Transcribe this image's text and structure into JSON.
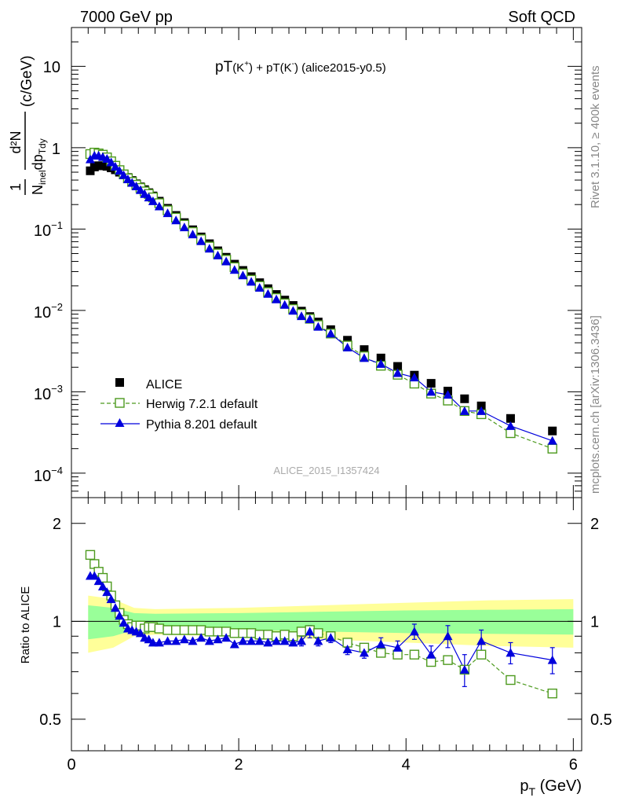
{
  "header": {
    "left": "7000 GeV pp",
    "right": "Soft QCD"
  },
  "plot_title": {
    "pre": "pT",
    "k1": "(K",
    "k1_sup": "+",
    "k1_close": ")",
    "plus": " + pT(K",
    "k2_sup": "-",
    "k2_close": ")",
    "post": " (alice2015-y0.5)"
  },
  "side_text": {
    "rivet": "Rivet 3.1.10, ≥ 400k events",
    "mcplots": "mcplots.cern.ch [arXiv:1306.3436]"
  },
  "watermark": "ALICE_2015_I1357424",
  "top_ylabel": {
    "one": "1",
    "num": "d²N",
    "den_n": "N",
    "den_sub": "inel",
    "den_dp": "dp",
    "den_sub2": "Tdy",
    "unit": "(c/GeV)"
  },
  "bottom_ylabel": "Ratio to ALICE",
  "xlabel": {
    "p": "p",
    "sub": "T",
    "unit": " (GeV)"
  },
  "legend": [
    {
      "label": "ALICE",
      "color": "#000000",
      "marker": "square-filled"
    },
    {
      "label": "Herwig 7.2.1 default",
      "color": "#4d9a1e",
      "marker": "square-open"
    },
    {
      "label": "Pythia 8.201 default",
      "color": "#0000dd",
      "marker": "triangle-filled"
    }
  ],
  "chart_data": {
    "type": "scatter",
    "x": [
      0.225,
      0.275,
      0.325,
      0.375,
      0.425,
      0.475,
      0.525,
      0.575,
      0.625,
      0.675,
      0.725,
      0.775,
      0.825,
      0.875,
      0.925,
      0.975,
      1.05,
      1.15,
      1.25,
      1.35,
      1.45,
      1.55,
      1.65,
      1.75,
      1.85,
      1.95,
      2.05,
      2.15,
      2.25,
      2.35,
      2.45,
      2.55,
      2.65,
      2.75,
      2.85,
      2.95,
      3.1,
      3.3,
      3.5,
      3.7,
      3.9,
      4.1,
      4.3,
      4.5,
      4.7,
      4.9,
      5.25,
      5.75
    ],
    "series": [
      {
        "name": "ALICE",
        "values": [
          0.52,
          0.58,
          0.6,
          0.6,
          0.59,
          0.565,
          0.535,
          0.5,
          0.465,
          0.43,
          0.395,
          0.36,
          0.33,
          0.305,
          0.28,
          0.255,
          0.22,
          0.18,
          0.147,
          0.12,
          0.098,
          0.08,
          0.066,
          0.054,
          0.045,
          0.037,
          0.031,
          0.026,
          0.0219,
          0.0185,
          0.0157,
          0.0134,
          0.0115,
          0.0098,
          0.0084,
          0.0072,
          0.0058,
          0.0043,
          0.0033,
          0.0026,
          0.00205,
          0.0016,
          0.00127,
          0.00102,
          0.00082,
          0.00067,
          0.00047,
          0.00033
        ]
      },
      {
        "name": "Herwig 7.2.1 default",
        "values": [
          0.835,
          0.87,
          0.85,
          0.82,
          0.76,
          0.68,
          0.6,
          0.53,
          0.47,
          0.42,
          0.38,
          0.35,
          0.32,
          0.29,
          0.27,
          0.245,
          0.208,
          0.17,
          0.138,
          0.113,
          0.092,
          0.075,
          0.061,
          0.05,
          0.042,
          0.034,
          0.0285,
          0.0238,
          0.02,
          0.0168,
          0.0142,
          0.0122,
          0.0104,
          0.0091,
          0.0079,
          0.0066,
          0.0052,
          0.0037,
          0.00273,
          0.00209,
          0.00162,
          0.00126,
          0.00095,
          0.00078,
          0.00058,
          0.00053,
          0.00031,
          0.0002
        ]
      },
      {
        "name": "Pythia 8.201 default",
        "values": [
          0.72,
          0.8,
          0.8,
          0.77,
          0.73,
          0.66,
          0.585,
          0.52,
          0.46,
          0.41,
          0.37,
          0.335,
          0.302,
          0.27,
          0.245,
          0.22,
          0.19,
          0.157,
          0.128,
          0.105,
          0.086,
          0.071,
          0.0575,
          0.0475,
          0.04,
          0.0315,
          0.027,
          0.0225,
          0.019,
          0.016,
          0.0137,
          0.0117,
          0.0099,
          0.0085,
          0.0078,
          0.0063,
          0.0052,
          0.0035,
          0.0026,
          0.0022,
          0.0017,
          0.0015,
          0.001,
          0.00092,
          0.00058,
          0.00058,
          0.00038,
          0.00025
        ]
      }
    ],
    "ratio": {
      "herwig": [
        1.6,
        1.5,
        1.42,
        1.36,
        1.28,
        1.2,
        1.12,
        1.06,
        1.01,
        0.98,
        0.96,
        0.97,
        0.97,
        0.95,
        0.96,
        0.96,
        0.95,
        0.94,
        0.94,
        0.94,
        0.94,
        0.94,
        0.93,
        0.93,
        0.93,
        0.92,
        0.92,
        0.92,
        0.91,
        0.91,
        0.9,
        0.91,
        0.9,
        0.93,
        0.94,
        0.92,
        0.9,
        0.86,
        0.83,
        0.8,
        0.79,
        0.79,
        0.75,
        0.76,
        0.71,
        0.79,
        0.66,
        0.6
      ],
      "pythia": [
        1.38,
        1.38,
        1.33,
        1.28,
        1.23,
        1.17,
        1.1,
        1.04,
        0.99,
        0.95,
        0.94,
        0.93,
        0.92,
        0.89,
        0.88,
        0.86,
        0.86,
        0.87,
        0.87,
        0.88,
        0.87,
        0.89,
        0.87,
        0.88,
        0.89,
        0.85,
        0.87,
        0.87,
        0.87,
        0.86,
        0.87,
        0.87,
        0.86,
        0.87,
        0.93,
        0.87,
        0.89,
        0.82,
        0.8,
        0.85,
        0.83,
        0.93,
        0.79,
        0.9,
        0.71,
        0.87,
        0.8,
        0.76
      ],
      "pythia_err": [
        0,
        0,
        0,
        0,
        0,
        0,
        0,
        0,
        0,
        0,
        0,
        0,
        0,
        0,
        0,
        0,
        0,
        0,
        0,
        0,
        0,
        0,
        0,
        0,
        0,
        0,
        0,
        0,
        0,
        0,
        0,
        0,
        0,
        0.03,
        0.04,
        0.03,
        0.03,
        0.03,
        0.03,
        0.04,
        0.04,
        0.05,
        0.05,
        0.07,
        0.08,
        0.07,
        0.06,
        0.07
      ],
      "band_inner": [
        [
          0.2,
          0.12
        ],
        [
          0.5,
          0.1
        ],
        [
          0.75,
          0.06
        ],
        [
          1.0,
          0.055
        ],
        [
          2.0,
          0.06
        ],
        [
          3.0,
          0.07
        ],
        [
          4.0,
          0.08
        ],
        [
          5.0,
          0.085
        ],
        [
          6.0,
          0.09
        ]
      ],
      "band_outer": [
        [
          0.2,
          0.2
        ],
        [
          0.5,
          0.17
        ],
        [
          0.75,
          0.1
        ],
        [
          1.0,
          0.09
        ],
        [
          2.0,
          0.1
        ],
        [
          3.0,
          0.12
        ],
        [
          4.0,
          0.14
        ],
        [
          5.0,
          0.16
        ],
        [
          6.0,
          0.17
        ]
      ]
    },
    "title": "pT(K+) + pT(K-) (alice2015-y0.5)",
    "xlabel": "pT (GeV)",
    "ylabel": "1/Ninel d²N/dpTdy (c/GeV)",
    "xlim": [
      0,
      6.1
    ],
    "ylim_top": [
      5e-05,
      30
    ],
    "ylim_bottom": [
      0.4,
      2.4
    ],
    "y_log": true,
    "x_ticks": [
      "0",
      "2",
      "4",
      "6"
    ],
    "top_y_ticks": [
      "10",
      "1",
      "10^-1",
      "10^-2",
      "10^-3",
      "10^-4"
    ],
    "bottom_y_ticks": [
      "2",
      "1",
      "0.5"
    ],
    "band_colors": {
      "outer": "#ffff99",
      "inner": "#99ff99"
    }
  }
}
